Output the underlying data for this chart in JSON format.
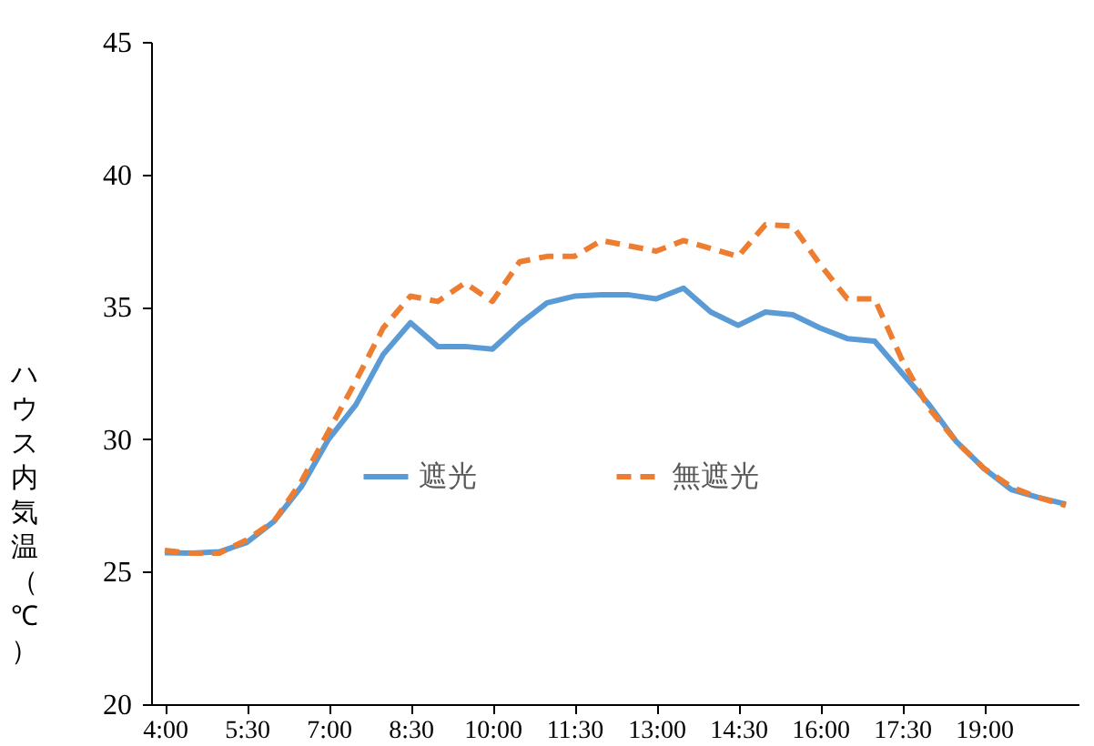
{
  "chart_data": {
    "type": "line",
    "ylabel": "ハウス内気温（℃）",
    "categories": [
      "4:00",
      null,
      null,
      "5:30",
      null,
      null,
      "7:00",
      null,
      null,
      "8:30",
      null,
      null,
      "10:00",
      null,
      null,
      "11:30",
      null,
      null,
      "13:00",
      null,
      null,
      "14:30",
      null,
      null,
      "16:00",
      null,
      null,
      "17:30",
      null,
      null,
      "19:00",
      null,
      null,
      null
    ],
    "series": [
      {
        "name": "遮光",
        "color": "#5b9bd5",
        "line_style": "solid",
        "values": [
          25.72,
          25.7,
          25.75,
          26.1,
          26.9,
          28.2,
          30.0,
          31.3,
          33.2,
          34.4,
          33.5,
          33.5,
          33.4,
          34.35,
          35.15,
          35.4,
          35.45,
          35.45,
          35.3,
          35.7,
          34.8,
          34.3,
          34.8,
          34.7,
          34.2,
          33.8,
          33.7,
          32.5,
          31.3,
          29.9,
          28.9,
          28.1,
          27.8,
          27.55
        ]
      },
      {
        "name": "無遮光",
        "color": "#ed7d31",
        "line_style": "dashed",
        "values": [
          25.8,
          25.7,
          25.7,
          26.2,
          26.9,
          28.4,
          30.3,
          32.2,
          34.2,
          35.4,
          35.2,
          35.9,
          35.2,
          36.7,
          36.9,
          36.9,
          37.5,
          37.3,
          37.1,
          37.5,
          37.2,
          36.9,
          38.1,
          38.05,
          36.6,
          35.3,
          35.3,
          33.0,
          31.15,
          29.9,
          28.9,
          28.2,
          27.8,
          27.5
        ]
      }
    ],
    "ylim": [
      20,
      45
    ],
    "yticks": [
      20,
      25,
      30,
      35,
      40,
      45
    ],
    "grid": false,
    "legend": "bottom",
    "marker": "none"
  }
}
